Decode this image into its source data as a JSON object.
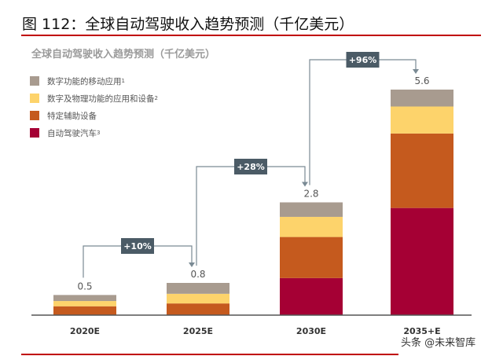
{
  "figure_title": "图 112：全球自动驾驶收入趋势预测（千亿美元）",
  "watermark": "头条 @未来智库",
  "chart_data": {
    "type": "bar",
    "stacked": true,
    "title": "全球自动驾驶收入趋势预测（千亿美元）",
    "categories": [
      "2020E",
      "2025E",
      "2030E",
      "2035+E"
    ],
    "series": [
      {
        "name": "自动驾驶汽车",
        "note": "3",
        "color": "#a50034",
        "values": [
          0,
          0,
          0.92,
          2.66
        ]
      },
      {
        "name": "特定辅助设备",
        "note": "",
        "color": "#c55a1e",
        "values": [
          0.22,
          0.29,
          1.02,
          1.85
        ]
      },
      {
        "name": "数字及物理功能的应用和设备",
        "note": "2",
        "color": "#fdd36b",
        "values": [
          0.13,
          0.24,
          0.5,
          0.67
        ]
      },
      {
        "name": "数字功能的移动应用",
        "note": "1",
        "color": "#a89b8f",
        "values": [
          0.15,
          0.27,
          0.36,
          0.42
        ]
      }
    ],
    "totals": [
      "0.5",
      "0.8",
      "2.8",
      "5.6"
    ],
    "growth_labels": [
      "+10%",
      "+28%",
      "+96%"
    ],
    "ylim": [
      0,
      5.6
    ],
    "grid": false,
    "legend_position": "top-left"
  }
}
